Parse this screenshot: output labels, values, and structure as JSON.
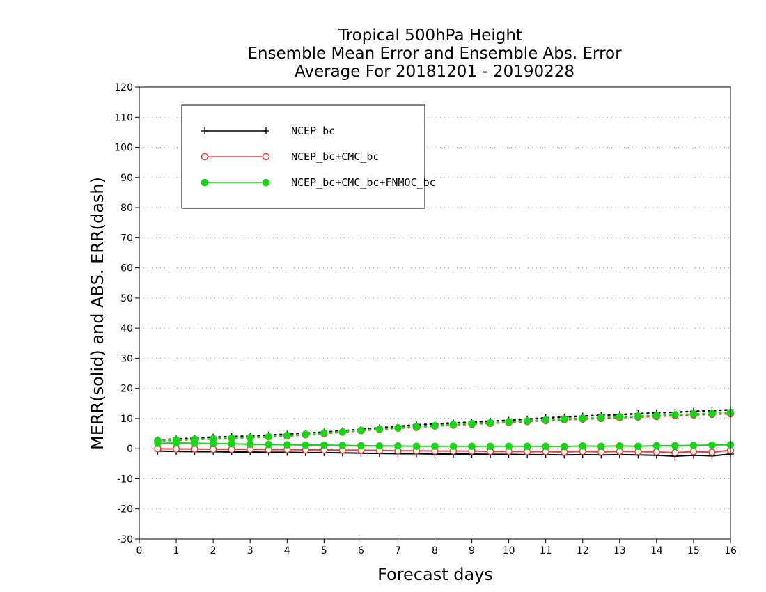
{
  "chart_data": {
    "type": "line",
    "title": [
      "Tropical 500hPa Height",
      "Ensemble Mean Error and Ensemble Abs. Error",
      "Average For 20181201 - 20190228"
    ],
    "xlabel": "Forecast days",
    "ylabel": "MERR(solid) and ABS. ERR(dash)",
    "xlim": [
      0,
      16
    ],
    "ylim": [
      -30,
      120
    ],
    "xticks": [
      0,
      1,
      2,
      3,
      4,
      5,
      6,
      7,
      8,
      9,
      10,
      11,
      12,
      13,
      14,
      15,
      16
    ],
    "yticks": [
      -30,
      -20,
      -10,
      0,
      10,
      20,
      30,
      40,
      50,
      60,
      70,
      80,
      90,
      100,
      110,
      120
    ],
    "grid": "horizontal dotted",
    "legend_position": "top-left",
    "x": [
      0.5,
      1,
      1.5,
      2,
      2.5,
      3,
      3.5,
      4,
      4.5,
      5,
      5.5,
      6,
      6.5,
      7,
      7.5,
      8,
      8.5,
      9,
      9.5,
      10,
      10.5,
      11,
      11.5,
      12,
      12.5,
      13,
      13.5,
      14,
      14.5,
      15,
      15.5,
      16
    ],
    "series": [
      {
        "name": "NCEP_bc",
        "color": "#000000",
        "marker": "plus",
        "merr": [
          -0.8,
          -0.9,
          -1.0,
          -1.0,
          -1.1,
          -1.1,
          -1.2,
          -1.2,
          -1.3,
          -1.3,
          -1.4,
          -1.5,
          -1.6,
          -1.7,
          -1.7,
          -1.8,
          -1.8,
          -1.8,
          -1.9,
          -1.9,
          -2.0,
          -2.0,
          -2.1,
          -2.0,
          -2.1,
          -2.0,
          -2.1,
          -2.2,
          -2.5,
          -2.2,
          -2.4,
          -1.8
        ],
        "abs_err": [
          2.9,
          3.2,
          3.5,
          3.8,
          4.0,
          4.2,
          4.5,
          4.8,
          5.1,
          5.5,
          5.9,
          6.4,
          6.9,
          7.4,
          7.9,
          8.2,
          8.5,
          8.8,
          9.1,
          9.4,
          9.8,
          10.2,
          10.5,
          10.8,
          11.1,
          11.3,
          11.6,
          11.9,
          12.1,
          12.4,
          12.6,
          12.9
        ]
      },
      {
        "name": "NCEP_bc+CMC_bc",
        "color": "#e83c3c",
        "marker": "open-circle",
        "merr": [
          0.0,
          -0.1,
          -0.1,
          -0.2,
          -0.2,
          -0.2,
          -0.3,
          -0.3,
          -0.4,
          -0.4,
          -0.5,
          -0.5,
          -0.6,
          -0.7,
          -0.7,
          -0.8,
          -0.8,
          -0.8,
          -0.9,
          -0.9,
          -1.0,
          -1.0,
          -1.1,
          -0.9,
          -1.1,
          -0.9,
          -1.0,
          -1.1,
          -1.3,
          -1.0,
          -1.2,
          -0.5
        ],
        "abs_err": [
          2.6,
          2.8,
          3.0,
          3.2,
          3.4,
          3.6,
          3.9,
          4.2,
          4.6,
          5.0,
          5.5,
          6.0,
          6.4,
          6.8,
          7.1,
          7.5,
          7.8,
          8.1,
          8.4,
          8.7,
          9.0,
          9.3,
          9.6,
          9.8,
          10.0,
          10.3,
          10.5,
          10.7,
          11.0,
          11.2,
          11.4,
          11.6
        ]
      },
      {
        "name": "NCEP_bc+CMC_bc+FNMOC_bc",
        "color": "#1ad41a",
        "marker": "filled-circle",
        "merr": [
          1.8,
          1.9,
          1.8,
          1.7,
          1.6,
          1.5,
          1.4,
          1.3,
          1.2,
          1.2,
          1.1,
          1.0,
          0.9,
          0.9,
          0.8,
          0.8,
          0.8,
          0.8,
          0.8,
          0.8,
          0.8,
          0.8,
          0.7,
          0.9,
          0.8,
          0.9,
          0.8,
          1.0,
          1.0,
          1.1,
          1.2,
          1.3
        ],
        "abs_err": [
          2.7,
          2.9,
          3.1,
          3.3,
          3.5,
          3.7,
          4.0,
          4.4,
          4.8,
          5.2,
          5.6,
          6.1,
          6.5,
          6.9,
          7.3,
          7.6,
          8.0,
          8.3,
          8.6,
          8.9,
          9.2,
          9.5,
          9.8,
          10.1,
          10.3,
          10.6,
          10.8,
          11.0,
          11.3,
          11.5,
          11.7,
          12.0
        ]
      }
    ]
  }
}
